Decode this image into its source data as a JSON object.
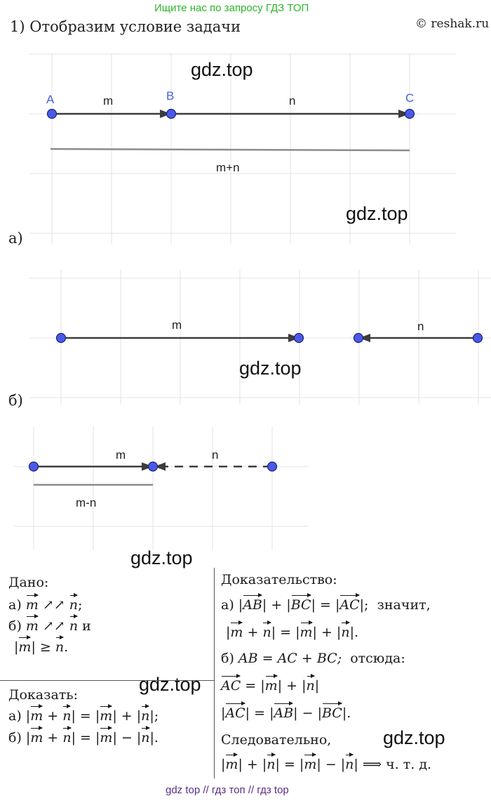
{
  "header": {
    "banner": "Ищите нас по запросу ГДЗ ТОП",
    "copyright": "© reshak.ru",
    "title": "1) Отобразим условие задачи"
  },
  "watermarks": {
    "w1": "gdz.top",
    "w2": "gdz.top",
    "w3": "gdz.top",
    "w4": "gdz.top",
    "w5": "gdz.top",
    "w6": "gdz.top"
  },
  "figure_a": {
    "part_label": "а)",
    "point_A": "A",
    "point_B": "B",
    "point_C": "C",
    "label_m": "m",
    "label_n": "n",
    "label_sum": "m+n"
  },
  "figure_b": {
    "part_label": "б)",
    "label_m": "m",
    "label_n": "n"
  },
  "figure_c": {
    "label_m": "m",
    "label_n": "n",
    "label_diff": "m-n"
  },
  "given": {
    "title": "Дано:",
    "a_prefix": "а)",
    "b_prefix": "б)",
    "and_word": "и",
    "codirected": "↗↗",
    "geq": "≥"
  },
  "prove": {
    "title": "Доказать:",
    "a_prefix": "а)",
    "b_prefix": "б)"
  },
  "proof": {
    "title": "Доказательство:",
    "a_prefix": "а)",
    "hence": "значит,",
    "b_prefix": "б)",
    "b_equation": "AB = AC + BC;",
    "therefrom": "отсюда:",
    "consequently": "Следовательно,",
    "qed": "ч. т. д."
  },
  "footer": {
    "text": "gdz top  //  гдз топ  //  гдз top"
  }
}
